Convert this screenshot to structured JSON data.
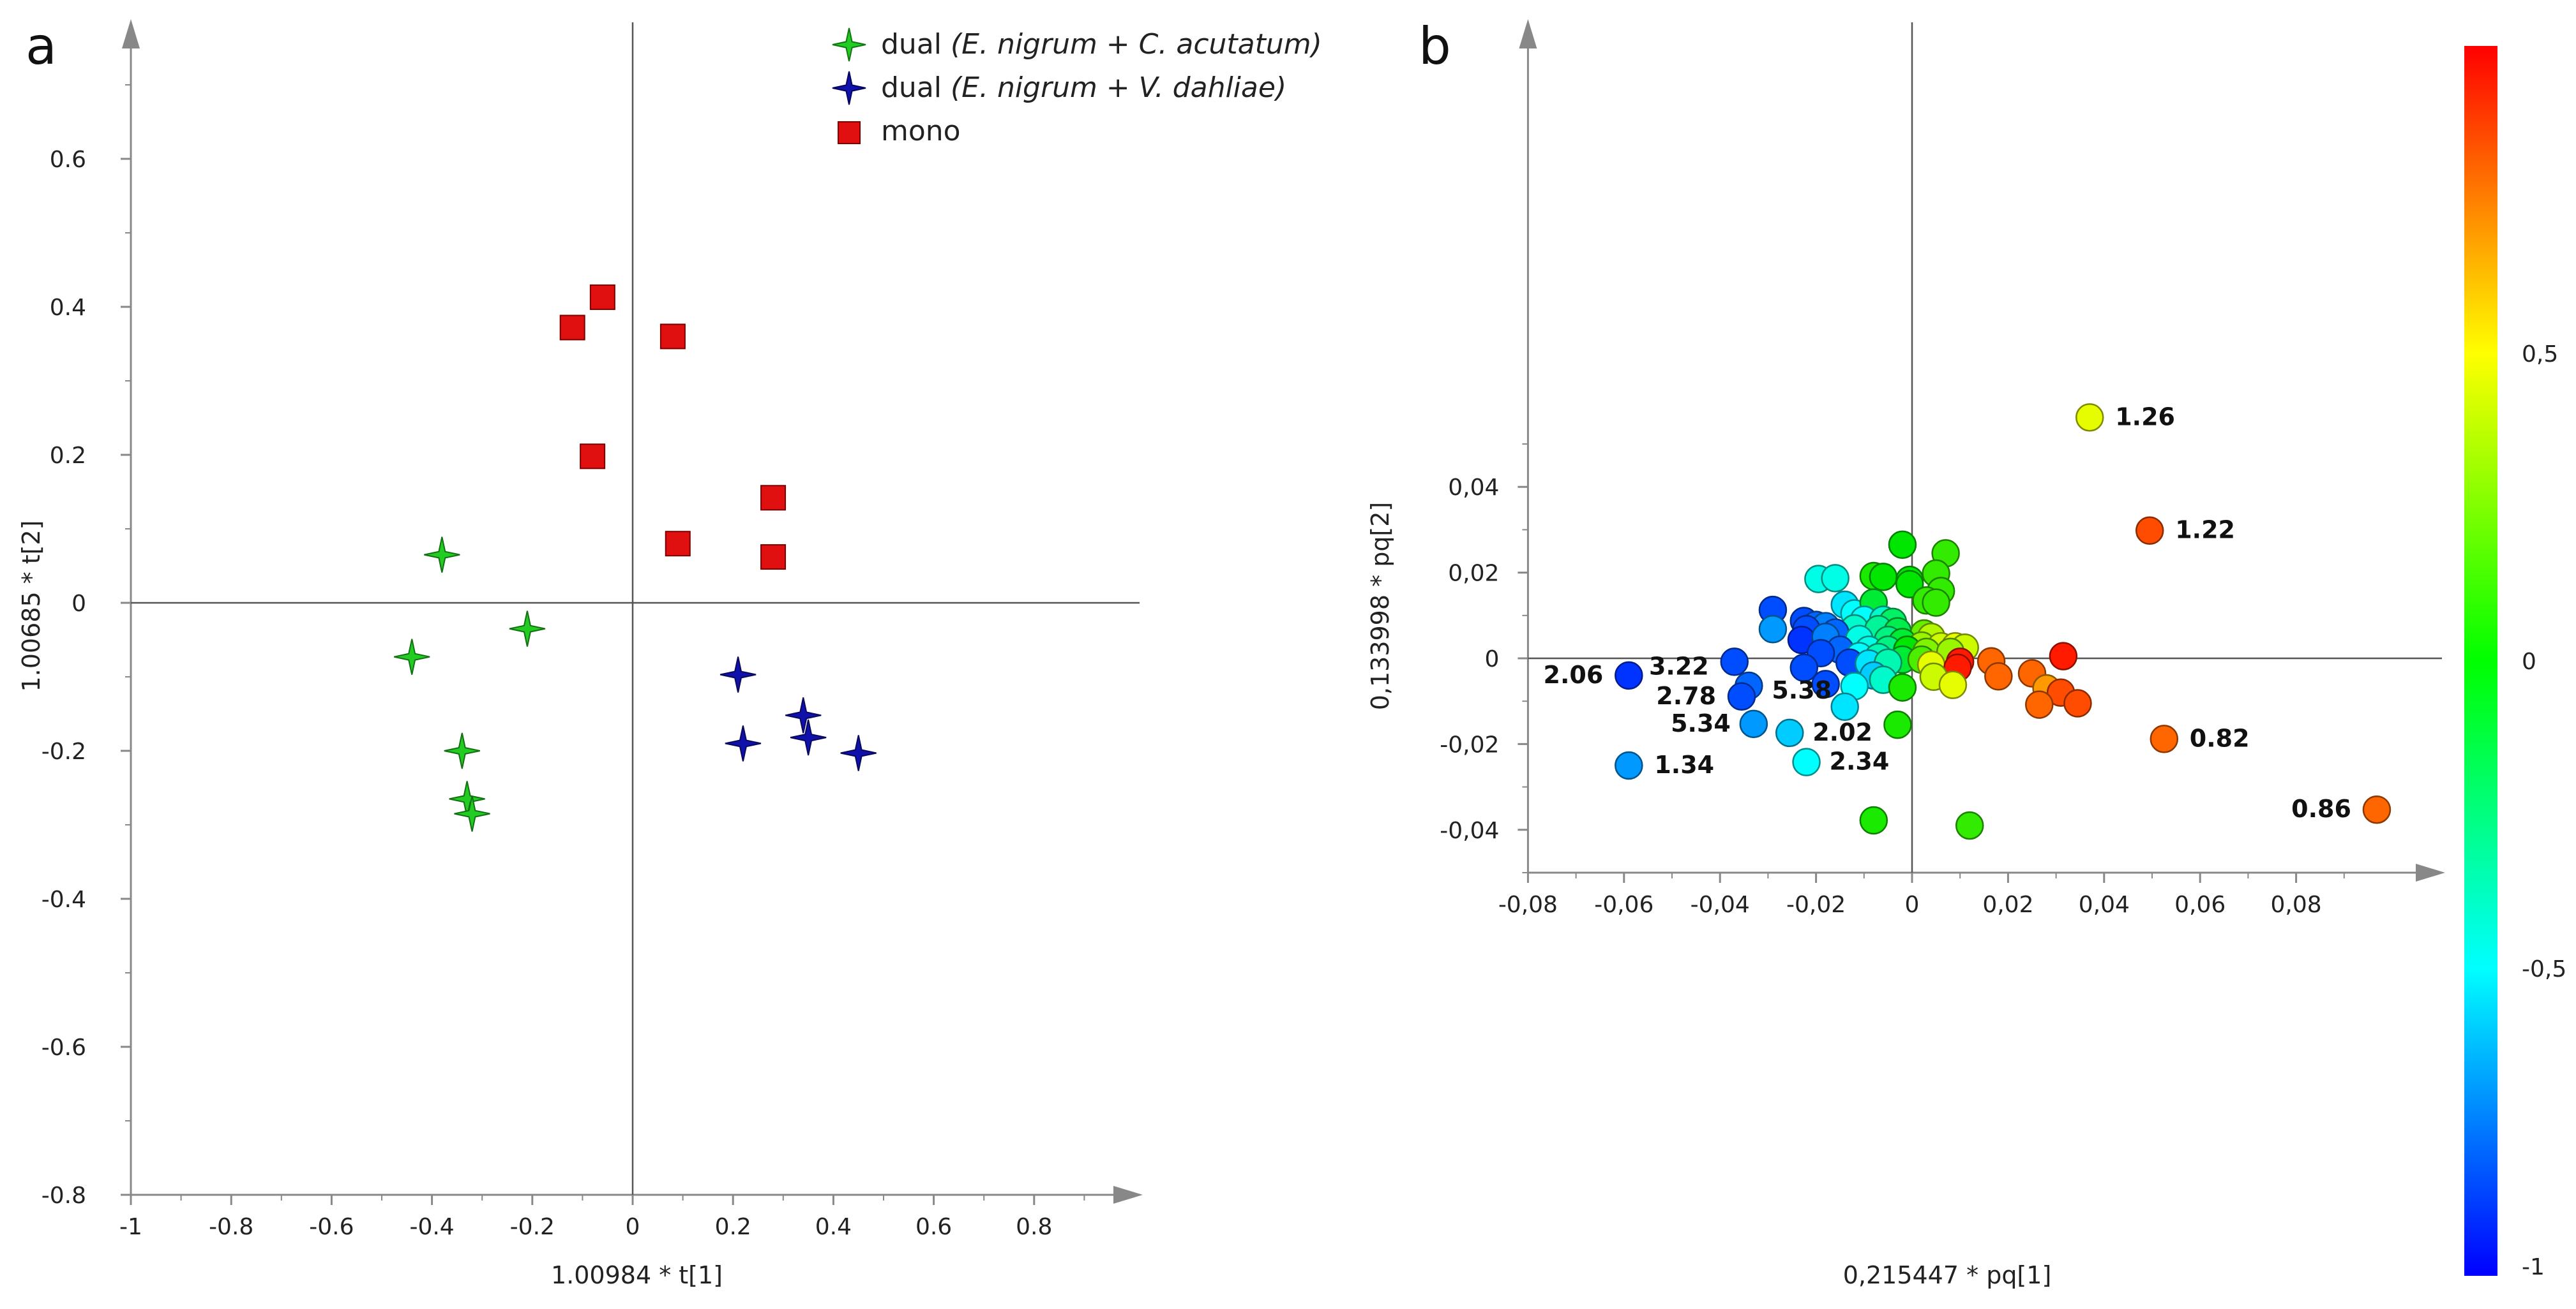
{
  "chart_data": [
    {
      "panel": "a",
      "type": "scatter",
      "title": "",
      "xlabel": "1.00984 * t[1]",
      "ylabel": "1.00685 * t[2]",
      "xlim": [
        -1,
        1
      ],
      "ylim": [
        -0.8,
        0.8
      ],
      "xticks": [
        -1,
        -0.8,
        -0.6,
        -0.4,
        -0.2,
        0,
        0.2,
        0.4,
        0.6,
        0.8
      ],
      "xtick_labels": [
        "-1",
        "-0.8",
        "-0.6",
        "-0.4",
        "-0.2",
        "0",
        "0.2",
        "0.4",
        "0.6",
        "0.8"
      ],
      "yticks": [
        -0.8,
        -0.6,
        -0.4,
        -0.2,
        0,
        0.2,
        0.4,
        0.6
      ],
      "ytick_labels": [
        "-0.8",
        "-0.6",
        "-0.4",
        "-0.2",
        "0",
        "0.2",
        "0.4",
        "0.6"
      ],
      "legend_position": "top-right",
      "series": [
        {
          "name_prefix": "dual ",
          "name_italic": "(E. nigrum + C. acutatum)",
          "marker": "star",
          "color": "#22cc22",
          "points": [
            [
              -0.38,
              0.065
            ],
            [
              -0.21,
              -0.035
            ],
            [
              -0.44,
              -0.073
            ],
            [
              -0.34,
              -0.2
            ],
            [
              -0.33,
              -0.265
            ],
            [
              -0.32,
              -0.285
            ]
          ]
        },
        {
          "name_prefix": "dual ",
          "name_italic": "(E. nigrum + V. dahliae)",
          "marker": "star",
          "color": "#1010aa",
          "points": [
            [
              0.21,
              -0.097
            ],
            [
              0.22,
              -0.19
            ],
            [
              0.34,
              -0.152
            ],
            [
              0.35,
              -0.182
            ],
            [
              0.45,
              -0.203
            ]
          ]
        },
        {
          "name_prefix": "mono",
          "name_italic": "",
          "marker": "square",
          "color": "#e01010",
          "points": [
            [
              -0.06,
              0.413
            ],
            [
              -0.12,
              0.372
            ],
            [
              0.08,
              0.36
            ],
            [
              -0.08,
              0.198
            ],
            [
              0.28,
              0.142
            ],
            [
              0.09,
              0.08
            ],
            [
              0.28,
              0.062
            ]
          ]
        }
      ]
    },
    {
      "panel": "b",
      "type": "scatter",
      "title": "",
      "xlabel": "0,215447 * pq[1]",
      "ylabel": "0,133998 * pq[2]",
      "xlim": [
        -0.08,
        0.1
      ],
      "ylim": [
        -0.05,
        0.06
      ],
      "xticks": [
        -0.08,
        -0.06,
        -0.04,
        -0.02,
        0,
        0.02,
        0.04,
        0.06,
        0.08
      ],
      "xtick_labels": [
        "-0,08",
        "-0,06",
        "-0,04",
        "-0,02",
        "0",
        "0,02",
        "0,04",
        "0,06",
        "0,08"
      ],
      "yticks": [
        -0.04,
        -0.02,
        0,
        0.02,
        0.04
      ],
      "ytick_labels": [
        "-0,04",
        "-0,02",
        "0",
        "0,02",
        "0,04"
      ],
      "colorbar": {
        "min": -1,
        "max": 1,
        "ticks": [
          -1,
          -0.5,
          0,
          0.5
        ],
        "tick_labels": [
          "-1",
          "-0,5",
          "0",
          "0,5"
        ]
      },
      "points": [
        {
          "x": 0.037,
          "y": 0.0562,
          "c": 0.45,
          "label": "1.26"
        },
        {
          "x": 0.0495,
          "y": 0.0298,
          "c": 0.85,
          "label": "1.22"
        },
        {
          "x": 0.0525,
          "y": -0.0188,
          "c": 0.8,
          "label": "0.82"
        },
        {
          "x": 0.0968,
          "y": -0.0353,
          "c": 0.8,
          "label": "0.86"
        },
        {
          "x": -0.059,
          "y": -0.004,
          "c": -0.9,
          "label": "2.06"
        },
        {
          "x": -0.037,
          "y": -0.0008,
          "c": -0.85,
          "label": "3.22"
        },
        {
          "x": -0.034,
          "y": -0.0064,
          "c": -0.8,
          "label": "5.38"
        },
        {
          "x": -0.0355,
          "y": -0.0089,
          "c": -0.85,
          "label": "2.78"
        },
        {
          "x": -0.033,
          "y": -0.0153,
          "c": -0.7,
          "label": "5.34"
        },
        {
          "x": -0.0255,
          "y": -0.0174,
          "c": -0.6,
          "label": "2.02"
        },
        {
          "x": -0.059,
          "y": -0.025,
          "c": -0.7,
          "label": "1.34"
        },
        {
          "x": -0.022,
          "y": -0.0242,
          "c": -0.5,
          "label": "2.34"
        },
        {
          "x": -0.002,
          "y": 0.0265,
          "c": 0.0,
          "label": ""
        },
        {
          "x": 0.007,
          "y": 0.0245,
          "c": 0.1,
          "label": ""
        },
        {
          "x": -0.008,
          "y": 0.0192,
          "c": 0.05,
          "label": ""
        },
        {
          "x": -0.006,
          "y": 0.019,
          "c": 0.0,
          "label": ""
        },
        {
          "x": -0.0005,
          "y": 0.0183,
          "c": 0.0,
          "label": ""
        },
        {
          "x": 0.005,
          "y": 0.0198,
          "c": 0.1,
          "label": ""
        },
        {
          "x": -0.0005,
          "y": 0.0173,
          "c": 0.0,
          "label": ""
        },
        {
          "x": 0.006,
          "y": 0.0157,
          "c": 0.1,
          "label": ""
        },
        {
          "x": 0.003,
          "y": 0.0135,
          "c": 0.1,
          "label": ""
        },
        {
          "x": 0.005,
          "y": 0.013,
          "c": 0.1,
          "label": ""
        },
        {
          "x": -0.0195,
          "y": 0.0185,
          "c": -0.45,
          "label": ""
        },
        {
          "x": -0.016,
          "y": 0.0187,
          "c": -0.45,
          "label": ""
        },
        {
          "x": -0.029,
          "y": 0.0113,
          "c": -0.85,
          "label": ""
        },
        {
          "x": -0.0225,
          "y": 0.0087,
          "c": -0.85,
          "label": ""
        },
        {
          "x": -0.02,
          "y": 0.0078,
          "c": -0.8,
          "label": ""
        },
        {
          "x": -0.018,
          "y": 0.0075,
          "c": -0.75,
          "label": ""
        },
        {
          "x": -0.022,
          "y": 0.0068,
          "c": -0.85,
          "label": ""
        },
        {
          "x": -0.029,
          "y": 0.0068,
          "c": -0.7,
          "label": ""
        },
        {
          "x": -0.014,
          "y": 0.0125,
          "c": -0.55,
          "label": ""
        },
        {
          "x": -0.012,
          "y": 0.0105,
          "c": -0.5,
          "label": ""
        },
        {
          "x": -0.008,
          "y": 0.013,
          "c": -0.1,
          "label": ""
        },
        {
          "x": -0.01,
          "y": 0.009,
          "c": -0.5,
          "label": ""
        },
        {
          "x": -0.006,
          "y": 0.009,
          "c": -0.4,
          "label": ""
        },
        {
          "x": -0.004,
          "y": 0.0085,
          "c": -0.2,
          "label": ""
        },
        {
          "x": -0.012,
          "y": 0.007,
          "c": -0.4,
          "label": ""
        },
        {
          "x": -0.007,
          "y": 0.0068,
          "c": -0.3,
          "label": ""
        },
        {
          "x": -0.003,
          "y": 0.0063,
          "c": -0.15,
          "label": ""
        },
        {
          "x": 0.0025,
          "y": 0.0058,
          "c": 0.2,
          "label": ""
        },
        {
          "x": 0.004,
          "y": 0.005,
          "c": 0.35,
          "label": ""
        },
        {
          "x": -0.016,
          "y": 0.006,
          "c": -0.8,
          "label": ""
        },
        {
          "x": -0.023,
          "y": 0.0043,
          "c": -0.9,
          "label": ""
        },
        {
          "x": -0.018,
          "y": 0.005,
          "c": -0.75,
          "label": ""
        },
        {
          "x": -0.011,
          "y": 0.0045,
          "c": -0.45,
          "label": ""
        },
        {
          "x": -0.005,
          "y": 0.0043,
          "c": -0.25,
          "label": ""
        },
        {
          "x": -0.002,
          "y": 0.0038,
          "c": -0.1,
          "label": ""
        },
        {
          "x": 0.002,
          "y": 0.003,
          "c": 0.3,
          "label": ""
        },
        {
          "x": 0.006,
          "y": 0.0028,
          "c": 0.4,
          "label": ""
        },
        {
          "x": 0.009,
          "y": 0.0028,
          "c": 0.45,
          "label": ""
        },
        {
          "x": 0.011,
          "y": 0.0025,
          "c": 0.4,
          "label": ""
        },
        {
          "x": -0.015,
          "y": 0.002,
          "c": -0.8,
          "label": ""
        },
        {
          "x": -0.009,
          "y": 0.002,
          "c": -0.45,
          "label": ""
        },
        {
          "x": -0.005,
          "y": 0.002,
          "c": -0.25,
          "label": ""
        },
        {
          "x": -0.001,
          "y": 0.002,
          "c": 0.0,
          "label": ""
        },
        {
          "x": 0.003,
          "y": 0.0015,
          "c": 0.25,
          "label": ""
        },
        {
          "x": 0.008,
          "y": 0.0015,
          "c": 0.3,
          "label": ""
        },
        {
          "x": -0.019,
          "y": 0.0012,
          "c": -0.85,
          "label": ""
        },
        {
          "x": -0.011,
          "y": 0.0005,
          "c": -0.5,
          "label": ""
        },
        {
          "x": -0.007,
          "y": 0.0003,
          "c": -0.35,
          "label": ""
        },
        {
          "x": -0.002,
          "y": -0.0003,
          "c": -0.1,
          "label": ""
        },
        {
          "x": 0.002,
          "y": -0.0003,
          "c": 0.15,
          "label": ""
        },
        {
          "x": -0.013,
          "y": -0.001,
          "c": -0.85,
          "label": ""
        },
        {
          "x": -0.009,
          "y": -0.0012,
          "c": -0.55,
          "label": ""
        },
        {
          "x": -0.005,
          "y": -0.001,
          "c": -0.35,
          "label": ""
        },
        {
          "x": 0.004,
          "y": -0.0015,
          "c": 0.45,
          "label": ""
        },
        {
          "x": 0.01,
          "y": -0.0008,
          "c": 0.95,
          "label": ""
        },
        {
          "x": 0.0095,
          "y": -0.0022,
          "c": 0.95,
          "label": ""
        },
        {
          "x": 0.0165,
          "y": -0.0007,
          "c": 0.8,
          "label": ""
        },
        {
          "x": 0.0315,
          "y": 0.0005,
          "c": 0.95,
          "label": ""
        },
        {
          "x": -0.0225,
          "y": -0.0022,
          "c": -0.85,
          "label": ""
        },
        {
          "x": -0.018,
          "y": -0.006,
          "c": -0.85,
          "label": ""
        },
        {
          "x": -0.008,
          "y": -0.004,
          "c": -0.6,
          "label": ""
        },
        {
          "x": -0.006,
          "y": -0.005,
          "c": -0.4,
          "label": ""
        },
        {
          "x": -0.012,
          "y": -0.0065,
          "c": -0.5,
          "label": ""
        },
        {
          "x": -0.002,
          "y": -0.0068,
          "c": 0.05,
          "label": ""
        },
        {
          "x": 0.0045,
          "y": -0.0043,
          "c": 0.4,
          "label": ""
        },
        {
          "x": 0.0085,
          "y": -0.0062,
          "c": 0.45,
          "label": ""
        },
        {
          "x": 0.018,
          "y": -0.0042,
          "c": 0.8,
          "label": ""
        },
        {
          "x": 0.025,
          "y": -0.0035,
          "c": 0.8,
          "label": ""
        },
        {
          "x": 0.028,
          "y": -0.007,
          "c": 0.7,
          "label": ""
        },
        {
          "x": 0.031,
          "y": -0.008,
          "c": 0.85,
          "label": ""
        },
        {
          "x": 0.0265,
          "y": -0.0108,
          "c": 0.8,
          "label": ""
        },
        {
          "x": 0.0345,
          "y": -0.0105,
          "c": 0.85,
          "label": ""
        },
        {
          "x": -0.014,
          "y": -0.0113,
          "c": -0.55,
          "label": ""
        },
        {
          "x": -0.003,
          "y": -0.0155,
          "c": 0.05,
          "label": ""
        },
        {
          "x": -0.008,
          "y": -0.0378,
          "c": 0.05,
          "label": ""
        },
        {
          "x": 0.012,
          "y": -0.039,
          "c": 0.1,
          "label": ""
        }
      ]
    }
  ]
}
